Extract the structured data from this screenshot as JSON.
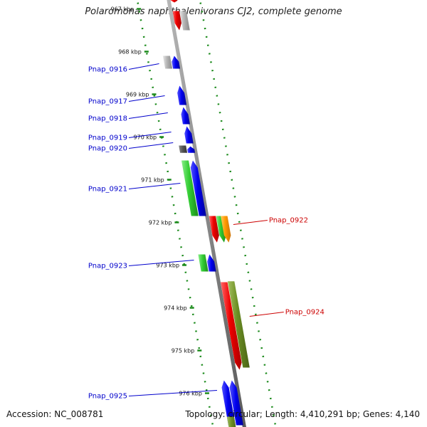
{
  "title": "Polaromonas naphthalenivorans CJ2, complete genome",
  "footer": {
    "accession": "Accession: NC_008781",
    "summary": "Topology: circular; Length: 4,410,291 bp; Genes: 4,140"
  },
  "colors": {
    "backbone": "#888888",
    "tick_dots": "#1a8a1a",
    "forward_label": "#0000cc",
    "reverse_label": "#cc0000",
    "blue": "#0000ee",
    "green": "#33cc33",
    "red": "#ee0000",
    "olive": "#6b8e23",
    "orange": "#ff9900",
    "gray": "#b3b3b3",
    "darkgray": "#555555"
  },
  "kbp_ticks": [
    {
      "label": "967 kbp",
      "kbp": 967
    },
    {
      "label": "968 kbp",
      "kbp": 968
    },
    {
      "label": "969 kbp",
      "kbp": 969
    },
    {
      "label": "970 kbp",
      "kbp": 970
    },
    {
      "label": "971 kbp",
      "kbp": 971
    },
    {
      "label": "972 kbp",
      "kbp": 972
    },
    {
      "label": "973 kbp",
      "kbp": 973
    },
    {
      "label": "974 kbp",
      "kbp": 974
    },
    {
      "label": "975 kbp",
      "kbp": 975
    },
    {
      "label": "976 kbp",
      "kbp": 976
    }
  ],
  "gene_labels": [
    {
      "text": "Pnap_0916",
      "strand": "forward",
      "kbp": 968.35
    },
    {
      "text": "Pnap_0917",
      "strand": "forward",
      "kbp": 969.1
    },
    {
      "text": "Pnap_0918",
      "strand": "forward",
      "kbp": 969.5
    },
    {
      "text": "Pnap_0919",
      "strand": "forward",
      "kbp": 969.95
    },
    {
      "text": "Pnap_0920",
      "strand": "forward",
      "kbp": 970.2
    },
    {
      "text": "Pnap_0921",
      "strand": "forward",
      "kbp": 971.15
    },
    {
      "text": "Pnap_0922",
      "strand": "reverse",
      "kbp": 971.95
    },
    {
      "text": "Pnap_0923",
      "strand": "forward",
      "kbp": 972.95
    },
    {
      "text": "Pnap_0924",
      "strand": "reverse",
      "kbp": 974.1
    },
    {
      "text": "Pnap_0925",
      "strand": "forward",
      "kbp": 976.0
    }
  ],
  "features": [
    {
      "strand": "reverse",
      "lane": 0,
      "start": 966.75,
      "end": 966.85,
      "color": "red",
      "dir": "down"
    },
    {
      "strand": "reverse",
      "lane": 0,
      "start": 967.05,
      "end": 967.5,
      "color": "red",
      "dir": "down"
    },
    {
      "strand": "reverse",
      "lane": 1,
      "start": 967.05,
      "end": 967.5,
      "color": "gray",
      "dir": "none"
    },
    {
      "strand": "forward",
      "lane": 0,
      "start": 968.1,
      "end": 968.4,
      "color": "gray",
      "dir": "none"
    },
    {
      "strand": "forward",
      "lane": 1,
      "start": 968.1,
      "end": 968.4,
      "color": "blue",
      "dir": "up"
    },
    {
      "strand": "forward",
      "lane": 1,
      "start": 968.8,
      "end": 969.25,
      "color": "blue",
      "dir": "up"
    },
    {
      "strand": "forward",
      "lane": 1,
      "start": 969.3,
      "end": 969.7,
      "color": "blue",
      "dir": "up"
    },
    {
      "strand": "forward",
      "lane": 1,
      "start": 969.75,
      "end": 970.15,
      "color": "blue",
      "dir": "up"
    },
    {
      "strand": "forward",
      "lane": 0,
      "start": 970.2,
      "end": 970.37,
      "color": "darkgray",
      "dir": "none"
    },
    {
      "strand": "forward",
      "lane": 1,
      "start": 970.22,
      "end": 970.37,
      "color": "blue",
      "dir": "up"
    },
    {
      "strand": "forward",
      "lane": 0,
      "start": 970.55,
      "end": 971.85,
      "color": "green",
      "dir": "none"
    },
    {
      "strand": "forward",
      "lane": 1,
      "start": 970.55,
      "end": 971.85,
      "color": "blue",
      "dir": "up"
    },
    {
      "strand": "reverse",
      "lane": 0,
      "start": 971.85,
      "end": 972.47,
      "color": "red",
      "dir": "down"
    },
    {
      "strand": "reverse",
      "lane": 1,
      "start": 971.85,
      "end": 972.47,
      "color": "green",
      "dir": "down"
    },
    {
      "strand": "reverse",
      "lane": 2,
      "start": 971.85,
      "end": 972.47,
      "color": "orange",
      "dir": "down"
    },
    {
      "strand": "forward",
      "lane": 0,
      "start": 972.75,
      "end": 973.15,
      "color": "green",
      "dir": "none"
    },
    {
      "strand": "forward",
      "lane": 1,
      "start": 972.75,
      "end": 973.15,
      "color": "blue",
      "dir": "up"
    },
    {
      "strand": "reverse",
      "lane": 0,
      "start": 973.4,
      "end": 975.45,
      "color": "red",
      "dir": "down"
    },
    {
      "strand": "reverse",
      "lane": 1,
      "start": 973.38,
      "end": 975.4,
      "color": "olive",
      "dir": "none"
    },
    {
      "strand": "forward",
      "lane": 0,
      "start": 975.7,
      "end": 976.75,
      "color": "blue",
      "dir": "up"
    },
    {
      "strand": "forward",
      "lane": 1,
      "start": 975.7,
      "end": 976.75,
      "color": "blue",
      "dir": "up"
    },
    {
      "strand": "forward",
      "lane": 0,
      "start": 976.55,
      "end": 976.95,
      "color": "olive",
      "dir": "none"
    }
  ]
}
